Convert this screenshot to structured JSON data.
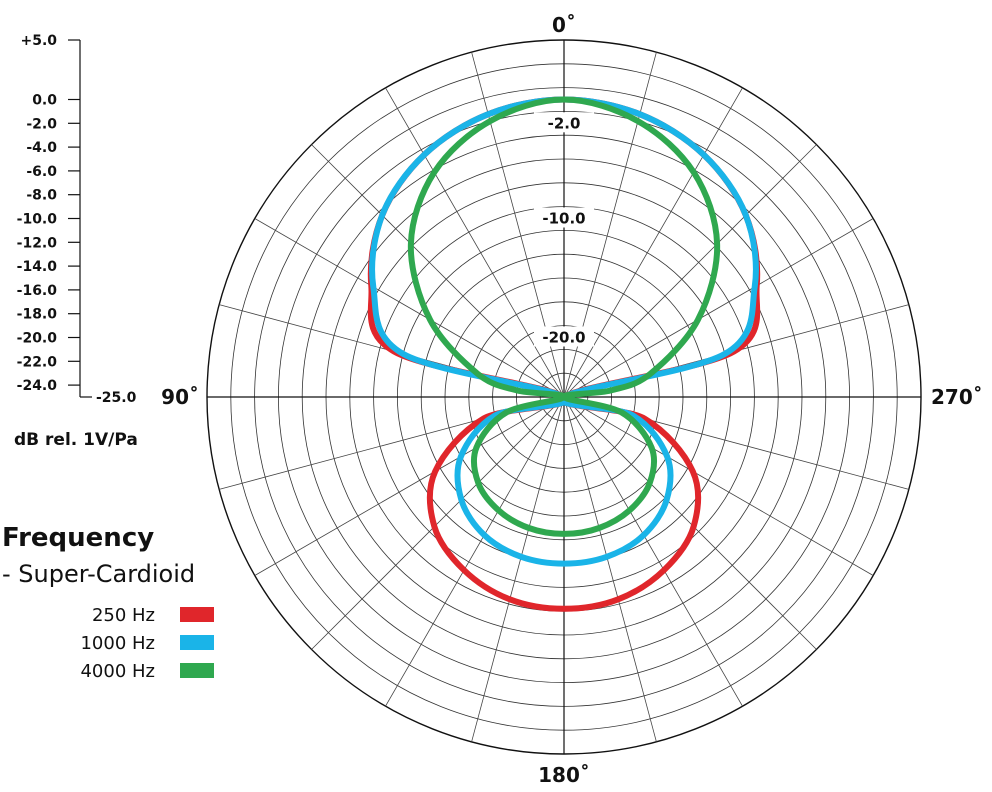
{
  "chart_data": {
    "type": "polar",
    "angle_labels": [
      {
        "angle": 0,
        "text": "0˚"
      },
      {
        "angle": 90,
        "text": "90˚"
      },
      {
        "angle": 180,
        "text": "180˚"
      },
      {
        "angle": 270,
        "text": "270˚"
      }
    ],
    "radial_range_db": [
      -25,
      5
    ],
    "radial_grid_step_db": 2,
    "angular_grid_step_deg": 15,
    "ring_labels": [
      {
        "db": -2,
        "text": "-2.0"
      },
      {
        "db": -10,
        "text": "-10.0"
      },
      {
        "db": -20,
        "text": "-20.0"
      }
    ],
    "scale_axis": {
      "ticks": [
        {
          "db": 5,
          "text": "+5.0"
        },
        {
          "db": 0,
          "text": "0.0"
        },
        {
          "db": -2,
          "text": "-2.0"
        },
        {
          "db": -4,
          "text": "-4.0"
        },
        {
          "db": -6,
          "text": "-6.0"
        },
        {
          "db": -8,
          "text": "-8.0"
        },
        {
          "db": -10,
          "text": "-10.0"
        },
        {
          "db": -12,
          "text": "-12.0"
        },
        {
          "db": -14,
          "text": "-14.0"
        },
        {
          "db": -16,
          "text": "-16.0"
        },
        {
          "db": -18,
          "text": "-18.0"
        },
        {
          "db": -20,
          "text": "-20.0"
        },
        {
          "db": -22,
          "text": "-22.0"
        },
        {
          "db": -24,
          "text": "-24.0"
        },
        {
          "db": -25,
          "text": "-25.0"
        }
      ],
      "unit_label": "dB rel. 1V/Pa"
    },
    "legend": {
      "heading": "Frequency",
      "subheading": "- Super-Cardioid"
    },
    "series": [
      {
        "name": "250 Hz",
        "color": "#e0262b",
        "points": [
          {
            "angle": 0,
            "db": 0.0
          },
          {
            "angle": 15,
            "db": -0.4
          },
          {
            "angle": 30,
            "db": -1.5
          },
          {
            "angle": 45,
            "db": -3.4
          },
          {
            "angle": 60,
            "db": -6.3
          },
          {
            "angle": 75,
            "db": -10.2
          },
          {
            "angle": 90,
            "db": -25.0
          },
          {
            "angle": 105,
            "db": -18.0
          },
          {
            "angle": 120,
            "db": -12.5
          },
          {
            "angle": 135,
            "db": -9.6
          },
          {
            "angle": 150,
            "db": -8.2
          },
          {
            "angle": 165,
            "db": -7.4
          },
          {
            "angle": 180,
            "db": -7.2
          },
          {
            "angle": 195,
            "db": -7.4
          },
          {
            "angle": 210,
            "db": -8.2
          },
          {
            "angle": 225,
            "db": -9.6
          },
          {
            "angle": 240,
            "db": -12.5
          },
          {
            "angle": 255,
            "db": -18.0
          },
          {
            "angle": 270,
            "db": -25.0
          },
          {
            "angle": 285,
            "db": -10.2
          },
          {
            "angle": 300,
            "db": -6.3
          },
          {
            "angle": 315,
            "db": -3.4
          },
          {
            "angle": 330,
            "db": -1.5
          },
          {
            "angle": 345,
            "db": -0.4
          }
        ]
      },
      {
        "name": "1000 Hz",
        "color": "#1ab4e8",
        "points": [
          {
            "angle": 0,
            "db": 0.0
          },
          {
            "angle": 15,
            "db": -0.4
          },
          {
            "angle": 30,
            "db": -1.5
          },
          {
            "angle": 45,
            "db": -3.4
          },
          {
            "angle": 60,
            "db": -6.5
          },
          {
            "angle": 75,
            "db": -11.0
          },
          {
            "angle": 90,
            "db": -25.0
          },
          {
            "angle": 105,
            "db": -19.0
          },
          {
            "angle": 120,
            "db": -15.0
          },
          {
            "angle": 135,
            "db": -12.8
          },
          {
            "angle": 150,
            "db": -11.6
          },
          {
            "angle": 165,
            "db": -11.1
          },
          {
            "angle": 180,
            "db": -11.0
          },
          {
            "angle": 195,
            "db": -11.1
          },
          {
            "angle": 210,
            "db": -11.6
          },
          {
            "angle": 225,
            "db": -12.8
          },
          {
            "angle": 240,
            "db": -15.0
          },
          {
            "angle": 255,
            "db": -19.0
          },
          {
            "angle": 270,
            "db": -25.0
          },
          {
            "angle": 285,
            "db": -11.0
          },
          {
            "angle": 300,
            "db": -6.5
          },
          {
            "angle": 315,
            "db": -3.4
          },
          {
            "angle": 330,
            "db": -1.5
          },
          {
            "angle": 345,
            "db": -0.4
          }
        ]
      },
      {
        "name": "4000 Hz",
        "color": "#2fa84f",
        "points": [
          {
            "angle": 0,
            "db": 0.0
          },
          {
            "angle": 15,
            "db": -1.0
          },
          {
            "angle": 30,
            "db": -3.2
          },
          {
            "angle": 45,
            "db": -6.8
          },
          {
            "angle": 60,
            "db": -12.0
          },
          {
            "angle": 75,
            "db": -17.5
          },
          {
            "angle": 82,
            "db": -21.0
          },
          {
            "angle": 90,
            "db": -25.0
          },
          {
            "angle": 105,
            "db": -20.0
          },
          {
            "angle": 120,
            "db": -16.5
          },
          {
            "angle": 135,
            "db": -14.8
          },
          {
            "angle": 150,
            "db": -14.0
          },
          {
            "angle": 165,
            "db": -13.6
          },
          {
            "angle": 180,
            "db": -13.5
          },
          {
            "angle": 195,
            "db": -13.6
          },
          {
            "angle": 210,
            "db": -14.0
          },
          {
            "angle": 225,
            "db": -14.8
          },
          {
            "angle": 240,
            "db": -16.5
          },
          {
            "angle": 255,
            "db": -20.0
          },
          {
            "angle": 270,
            "db": -25.0
          },
          {
            "angle": 278,
            "db": -21.0
          },
          {
            "angle": 285,
            "db": -17.5
          },
          {
            "angle": 300,
            "db": -12.0
          },
          {
            "angle": 315,
            "db": -6.8
          },
          {
            "angle": 330,
            "db": -3.2
          },
          {
            "angle": 345,
            "db": -1.0
          }
        ]
      }
    ]
  }
}
